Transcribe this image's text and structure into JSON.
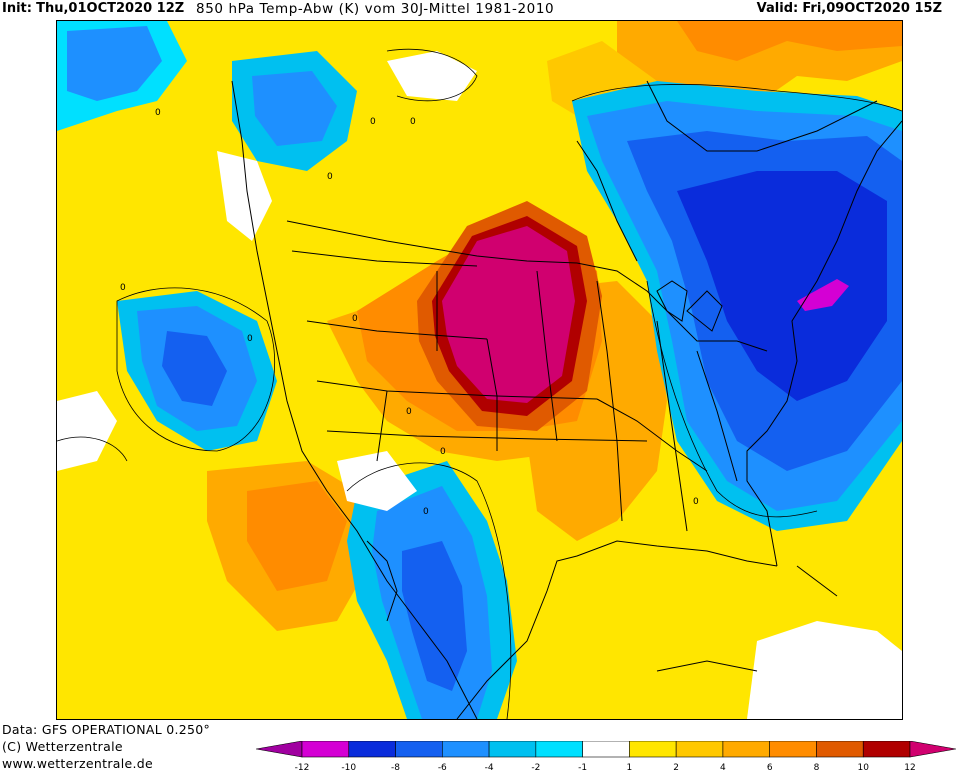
{
  "header": {
    "init_label": "Init:",
    "init_value": "Thu,01OCT2020 12Z",
    "title": "850 hPa Temp-Abw (K) vom 30J-Mittel 1981-2010",
    "valid_label": "Valid:",
    "valid_value": "Fri,09OCT2020 15Z"
  },
  "footer": {
    "data_source": "Data: GFS OPERATIONAL 0.250°",
    "copyright": "(C) Wetterzentrale",
    "website": "www.wetterzentrale.de"
  },
  "legend": {
    "tick_labels": [
      "-12",
      "-10",
      "-8",
      "-6",
      "-4",
      "-2",
      "-1",
      "1",
      "2",
      "4",
      "6",
      "8",
      "10",
      "12"
    ],
    "colors": [
      "#a000a0",
      "#d400d4",
      "#0a2cdb",
      "#1460f0",
      "#1e90ff",
      "#00c0f0",
      "#00e0ff",
      "#ffffff",
      "#ffe600",
      "#ffc800",
      "#ffaa00",
      "#ff8c00",
      "#e05a00",
      "#b00000",
      "#d0006f"
    ]
  },
  "map": {
    "contour_labels": [
      "0",
      "0",
      "0",
      "0",
      "0",
      "0",
      "0",
      "0",
      "0",
      "0",
      "0"
    ]
  }
}
